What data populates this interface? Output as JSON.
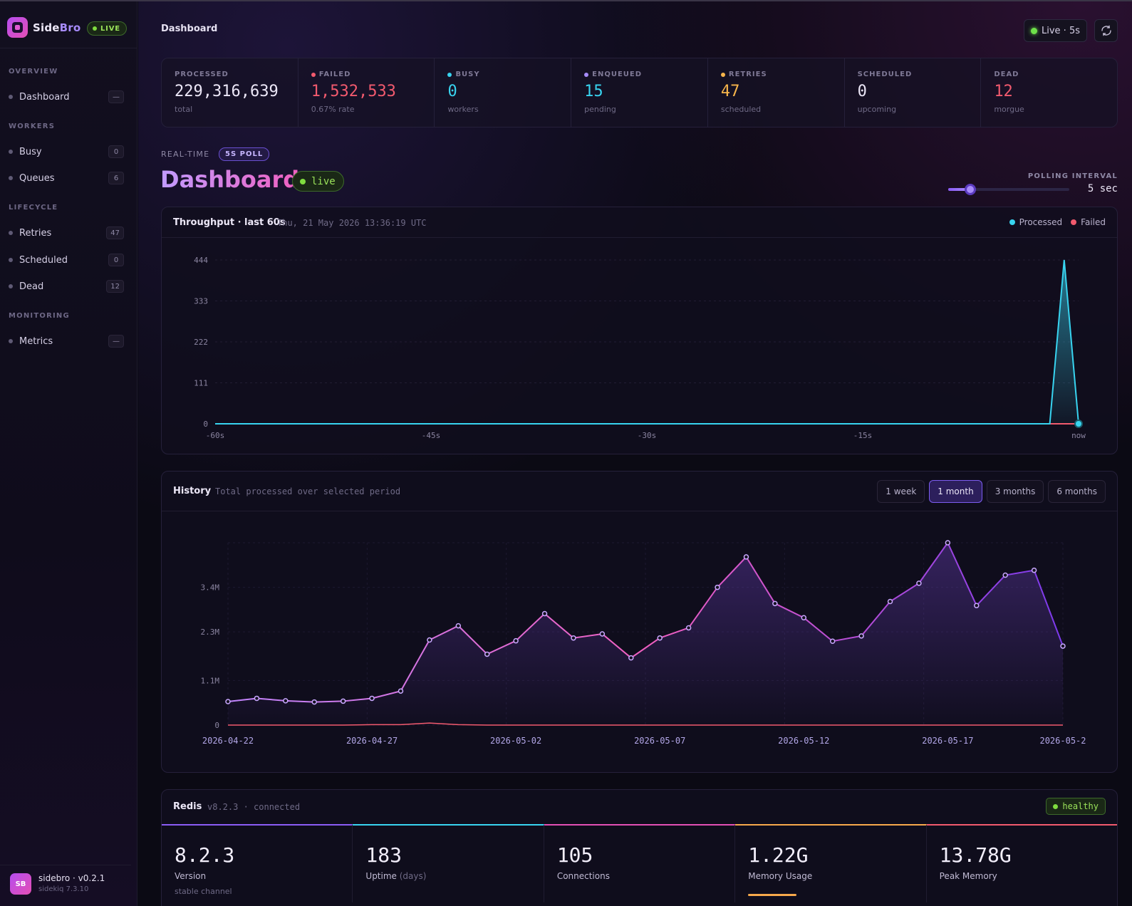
{
  "sidebar": {
    "brand_a": "Side",
    "brand_b": "Bro",
    "live_label": "LIVE",
    "sections": {
      "overview": "OVERVIEW",
      "workers": "WORKERS",
      "lifecycle": "LIFECYCLE",
      "monitoring": "MONITORING"
    },
    "items": [
      {
        "label": "Dashboard",
        "count": "—"
      },
      {
        "label": "Busy",
        "count": "0"
      },
      {
        "label": "Queues",
        "count": "6"
      },
      {
        "label": "Retries",
        "count": "47"
      },
      {
        "label": "Scheduled",
        "count": "0"
      },
      {
        "label": "Dead",
        "count": "12"
      },
      {
        "label": "Metrics",
        "count": "—"
      }
    ],
    "footer": {
      "avatar": "SB",
      "name": "sidebro · v0.2.1",
      "sub": "sidekiq 7.3.10"
    }
  },
  "header": {
    "breadcrumb": "Dashboard",
    "live_btn": "Live · 5s"
  },
  "stats": [
    {
      "label": "PROCESSED",
      "value": "229,316,639",
      "sub": "total",
      "color": "#ece7f7",
      "dot": ""
    },
    {
      "label": "FAILED",
      "value": "1,532,533",
      "sub": "0.67% rate",
      "color": "#f25a6e",
      "dot": "#f25a6e"
    },
    {
      "label": "BUSY",
      "value": "0",
      "sub": "workers",
      "color": "#38d4f0",
      "dot": "#38d4f0"
    },
    {
      "label": "ENQUEUED",
      "value": "15",
      "sub": "pending",
      "color": "#38d4f0",
      "dot": "#a78bfa"
    },
    {
      "label": "RETRIES",
      "value": "47",
      "sub": "scheduled",
      "color": "#f7b54b",
      "dot": "#f7b54b"
    },
    {
      "label": "SCHEDULED",
      "value": "0",
      "sub": "upcoming",
      "color": "#ece7f7",
      "dot": ""
    },
    {
      "label": "DEAD",
      "value": "12",
      "sub": "morgue",
      "color": "#f25a6e",
      "dot": ""
    }
  ],
  "realtime": {
    "label": "REAL-TIME",
    "poll_badge": "5S POLL",
    "title": "Dashboard",
    "live": "live",
    "polling_label": "POLLING INTERVAL",
    "polling_value": "5 sec",
    "polling_fraction": 0.18
  },
  "throughput": {
    "title": "Throughput · last 60s",
    "timestamp": "Thu, 21 May 2026 13:36:19 UTC",
    "legend_processed": "Processed",
    "legend_failed": "Failed"
  },
  "history": {
    "title": "History",
    "subtitle": "Total processed over selected period",
    "ranges": [
      "1 week",
      "1 month",
      "3 months",
      "6 months"
    ],
    "active_range": "1 month"
  },
  "redis": {
    "title": "Redis",
    "subtitle": "v8.2.3 · connected",
    "status": "healthy",
    "tiles": [
      {
        "value": "8.2.3",
        "label": "Version",
        "unit": "",
        "sub": "stable channel",
        "color": "#8b5cf6"
      },
      {
        "value": "183",
        "label": "Uptime",
        "unit": "(days)",
        "sub": "",
        "color": "#38d4f0"
      },
      {
        "value": "105",
        "label": "Connections",
        "unit": "",
        "sub": "",
        "color": "#e34fb5"
      },
      {
        "value": "1.22G",
        "label": "Memory Usage",
        "unit": "",
        "sub": "",
        "color": "#f7a94b"
      },
      {
        "value": "13.78G",
        "label": "Peak Memory",
        "unit": "",
        "sub": "",
        "color": "#f25a6e"
      }
    ]
  },
  "chart_data": [
    {
      "type": "line",
      "title": "Throughput · last 60s",
      "x_ticks": [
        "-60s",
        "-45s",
        "-30s",
        "-15s",
        "now"
      ],
      "y_ticks": [
        "0",
        "111",
        "222",
        "333",
        "444"
      ],
      "ylim": [
        0,
        444
      ],
      "xlim": [
        -60,
        0
      ],
      "series": [
        {
          "name": "Processed",
          "color": "#38d4f0",
          "x": [
            -60,
            -2,
            -1,
            0
          ],
          "y": [
            0,
            0,
            444,
            0
          ]
        },
        {
          "name": "Failed",
          "color": "#f25a6e",
          "x": [
            -60,
            0
          ],
          "y": [
            0,
            0
          ]
        }
      ]
    },
    {
      "type": "area",
      "title": "History",
      "x_ticks": [
        "2026-04-22",
        "2026-04-27",
        "2026-05-02",
        "2026-05-07",
        "2026-05-12",
        "2026-05-17",
        "2026-05-2"
      ],
      "y_ticks": [
        "0",
        "1.1M",
        "2.3M",
        "3.4M"
      ],
      "ylim": [
        0,
        4.5
      ],
      "y_unit": "M",
      "x": [
        "2026-04-22",
        "2026-04-23",
        "2026-04-24",
        "2026-04-25",
        "2026-04-26",
        "2026-04-27",
        "2026-04-28",
        "2026-04-29",
        "2026-04-30",
        "2026-05-01",
        "2026-05-02",
        "2026-05-03",
        "2026-05-04",
        "2026-05-05",
        "2026-05-06",
        "2026-05-07",
        "2026-05-08",
        "2026-05-09",
        "2026-05-10",
        "2026-05-11",
        "2026-05-12",
        "2026-05-13",
        "2026-05-14",
        "2026-05-15",
        "2026-05-16",
        "2026-05-17",
        "2026-05-18",
        "2026-05-19",
        "2026-05-20",
        "2026-05-21"
      ],
      "series": [
        {
          "name": "Processed",
          "color": "#e25bd3",
          "values": [
            0.58,
            0.66,
            0.6,
            0.57,
            0.59,
            0.66,
            0.84,
            2.1,
            2.45,
            1.75,
            2.08,
            2.75,
            2.15,
            2.25,
            1.66,
            2.15,
            2.4,
            3.4,
            4.15,
            3.0,
            2.65,
            2.07,
            2.2,
            3.05,
            3.5,
            4.5,
            2.95,
            3.7,
            3.82,
            1.95
          ]
        },
        {
          "name": "Failed",
          "color": "#f25a6e",
          "values": [
            0,
            0,
            0,
            0,
            0,
            0.01,
            0.01,
            0.05,
            0.01,
            0,
            0,
            0,
            0,
            0,
            0,
            0,
            0,
            0,
            0,
            0,
            0,
            0,
            0,
            0,
            0,
            0,
            0,
            0,
            0,
            0
          ]
        }
      ]
    }
  ]
}
